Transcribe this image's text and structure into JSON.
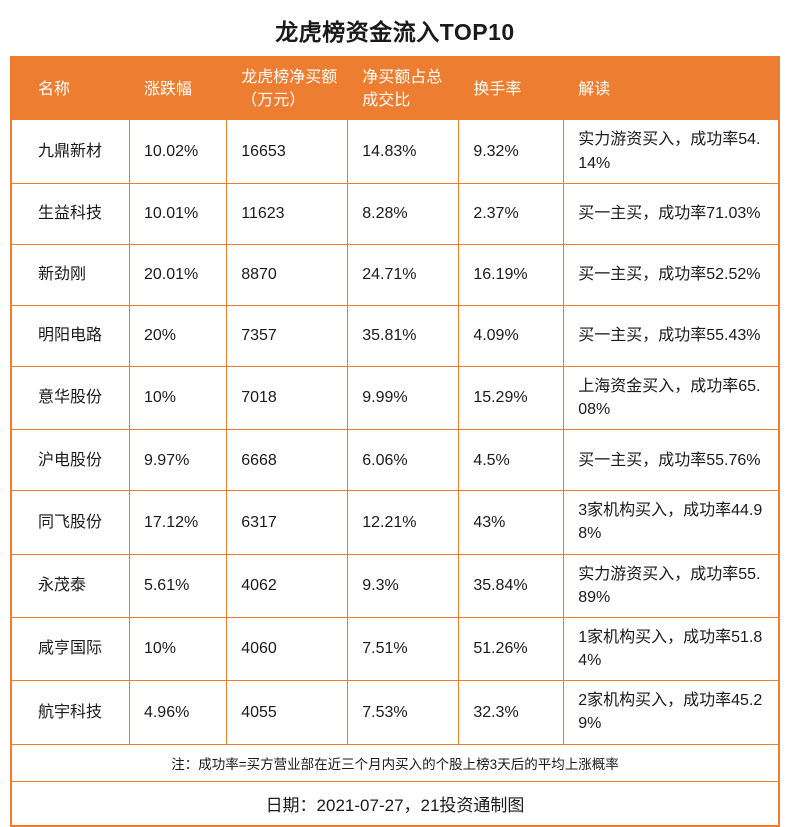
{
  "title": "龙虎榜资金流入TOP10",
  "colors": {
    "accent": "#ED7D31",
    "header_text": "#FFFFFF",
    "body_text": "#1A1A1A"
  },
  "chart_data": {
    "type": "table",
    "title": "龙虎榜资金流入TOP10",
    "columns": [
      "名称",
      "涨跌幅",
      "龙虎榜净买额（万元）",
      "净买额占总成交比",
      "换手率",
      "解读"
    ],
    "rows": [
      [
        "九鼎新材",
        "10.02%",
        "16653",
        "14.83%",
        "9.32%",
        "实力游资买入，成功率54.14%"
      ],
      [
        "生益科技",
        "10.01%",
        "11623",
        "8.28%",
        "2.37%",
        "买一主买，成功率71.03%"
      ],
      [
        "新劲刚",
        "20.01%",
        "8870",
        "24.71%",
        "16.19%",
        "买一主买，成功率52.52%"
      ],
      [
        "明阳电路",
        "20%",
        "7357",
        "35.81%",
        "4.09%",
        "买一主买，成功率55.43%"
      ],
      [
        "意华股份",
        "10%",
        "7018",
        "9.99%",
        "15.29%",
        "上海资金买入，成功率65.08%"
      ],
      [
        "沪电股份",
        "9.97%",
        "6668",
        "6.06%",
        "4.5%",
        "买一主买，成功率55.76%"
      ],
      [
        "同飞股份",
        "17.12%",
        "6317",
        "12.21%",
        "43%",
        "3家机构买入，成功率44.98%"
      ],
      [
        "永茂泰",
        "5.61%",
        "4062",
        "9.3%",
        "35.84%",
        "实力游资买入，成功率55.89%"
      ],
      [
        "咸亨国际",
        "10%",
        "4060",
        "7.51%",
        "51.26%",
        "1家机构买入，成功率51.84%"
      ],
      [
        "航宇科技",
        "4.96%",
        "4055",
        "7.53%",
        "32.3%",
        "2家机构买入，成功率45.29%"
      ]
    ]
  },
  "footer": {
    "note": "注：成功率=买方营业部在近三个月内买入的个股上榜3天后的平均上涨概率",
    "date_line": "日期：2021-07-27，21投资通制图"
  }
}
